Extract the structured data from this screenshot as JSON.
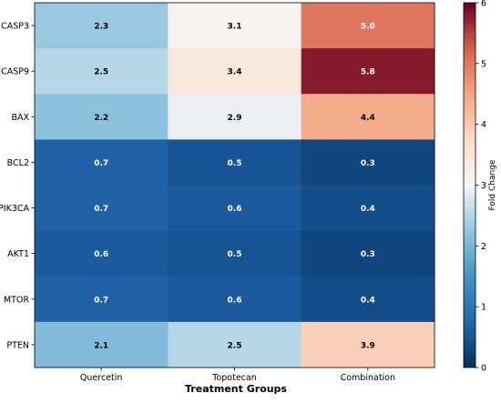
{
  "chart_data": {
    "type": "heatmap",
    "title": "",
    "xlabel": "Treatment Groups",
    "ylabel": "",
    "x_categories": [
      "Quercetin",
      "Topotecan",
      "Combination"
    ],
    "y_categories": [
      "CASP3",
      "CASP9",
      "BAX",
      "BCL2",
      "PIK3CA",
      "AKT1",
      "MTOR",
      "PTEN"
    ],
    "values": [
      [
        2.3,
        3.1,
        5.0
      ],
      [
        2.5,
        3.4,
        5.8
      ],
      [
        2.2,
        2.9,
        4.4
      ],
      [
        0.7,
        0.5,
        0.3
      ],
      [
        0.7,
        0.6,
        0.4
      ],
      [
        0.6,
        0.5,
        0.3
      ],
      [
        0.7,
        0.6,
        0.4
      ],
      [
        2.1,
        2.5,
        3.9
      ]
    ],
    "colorbar": {
      "label": "Fold Change",
      "range": [
        0,
        6
      ],
      "ticks": [
        0,
        1,
        2,
        3,
        4,
        5,
        6
      ],
      "colormap": "RdBu_r",
      "center": 3
    },
    "grid": false,
    "annotations": "cell values shown with one decimal"
  }
}
